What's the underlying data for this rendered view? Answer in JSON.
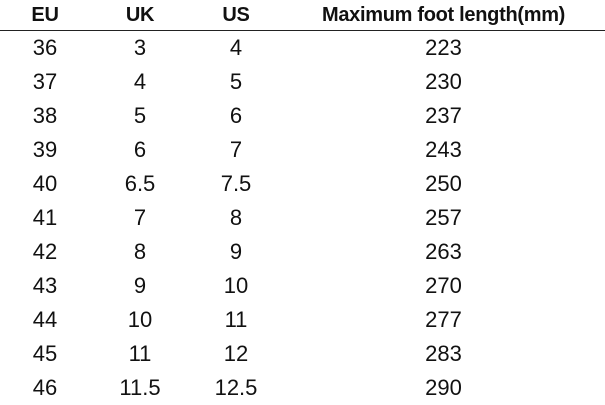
{
  "table": {
    "headers": [
      "EU",
      "UK",
      "US",
      "Maximum foot length(mm)"
    ],
    "rows": [
      [
        "36",
        "3",
        "4",
        "223"
      ],
      [
        "37",
        "4",
        "5",
        "230"
      ],
      [
        "38",
        "5",
        "6",
        "237"
      ],
      [
        "39",
        "6",
        "7",
        "243"
      ],
      [
        "40",
        "6.5",
        "7.5",
        "250"
      ],
      [
        "41",
        "7",
        "8",
        "257"
      ],
      [
        "42",
        "8",
        "9",
        "263"
      ],
      [
        "43",
        "9",
        "10",
        "270"
      ],
      [
        "44",
        "10",
        "11",
        "277"
      ],
      [
        "45",
        "11",
        "12",
        "283"
      ],
      [
        "46",
        "11.5",
        "12.5",
        "290"
      ]
    ]
  }
}
